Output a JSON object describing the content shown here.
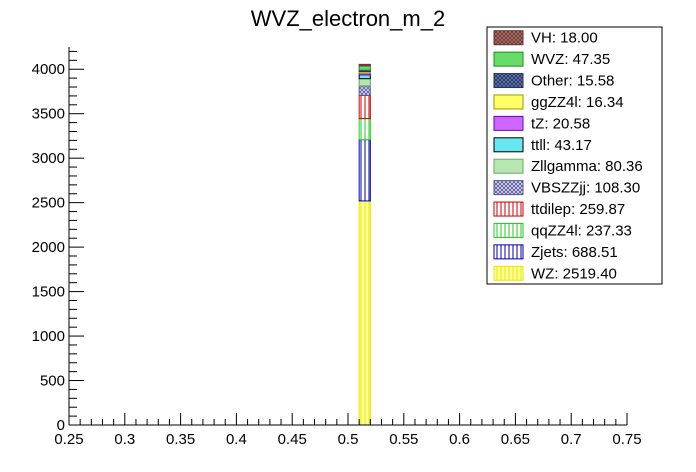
{
  "chart_data": {
    "type": "bar",
    "title": "WVZ_electron_m_2",
    "xlabel": "",
    "ylabel": "",
    "xlim": [
      0.25,
      0.75
    ],
    "ylim": [
      0,
      4250
    ],
    "x_ticks": [
      "0.25",
      "0.3",
      "0.35",
      "0.4",
      "0.45",
      "0.5",
      "0.55",
      "0.6",
      "0.65",
      "0.7",
      "0.75"
    ],
    "y_ticks": [
      "0",
      "500",
      "1000",
      "1500",
      "2000",
      "2500",
      "3000",
      "3500",
      "4000"
    ],
    "stacked": true,
    "bin": [
      0.51,
      0.52
    ],
    "legend_position": "top-right",
    "series": [
      {
        "name": "WZ",
        "value": 2519.4,
        "legend": "WZ: 2519.40",
        "color": "#e8e800",
        "fill": "#ffff99",
        "pattern": "vlines"
      },
      {
        "name": "Zjets",
        "value": 688.51,
        "legend": "Zjets: 688.51",
        "color": "#0000aa",
        "fill": "#ffffff",
        "pattern": "vlines"
      },
      {
        "name": "qqZZ4l",
        "value": 237.33,
        "legend": "qqZZ4l: 237.33",
        "color": "#22cc22",
        "fill": "#ffffff",
        "pattern": "vlines"
      },
      {
        "name": "ttdilep",
        "value": 259.87,
        "legend": "ttdilep: 259.87",
        "color": "#cc0000",
        "fill": "#ffffff",
        "pattern": "vlines"
      },
      {
        "name": "VBSZZjj",
        "value": 108.3,
        "legend": "VBSZZjj: 108.30",
        "color": "#555599",
        "fill": "#dcdcf0",
        "pattern": "cross"
      },
      {
        "name": "Zllgamma",
        "value": 80.36,
        "legend": "Zllgamma: 80.36",
        "color": "#66aa66",
        "fill": "#b8e6b0",
        "pattern": "solid"
      },
      {
        "name": "ttll",
        "value": 43.17,
        "legend": "ttll: 43.17",
        "color": "#000000",
        "fill": "#66e8f0",
        "pattern": "solid"
      },
      {
        "name": "tZ",
        "value": 20.58,
        "legend": "tZ: 20.58",
        "color": "#6600cc",
        "fill": "#cc66ff",
        "pattern": "solid"
      },
      {
        "name": "ggZZ4l",
        "value": 16.34,
        "legend": "ggZZ4l: 16.34",
        "color": "#999900",
        "fill": "#ffff66",
        "pattern": "solid"
      },
      {
        "name": "Other",
        "value": 15.58,
        "legend": "Other: 15.58",
        "color": "#223366",
        "fill": "#6677aa",
        "pattern": "cross"
      },
      {
        "name": "WVZ",
        "value": 47.35,
        "legend": "WVZ: 47.35",
        "color": "#228822",
        "fill": "#66dd66",
        "pattern": "solid"
      },
      {
        "name": "VH",
        "value": 18.0,
        "legend": "VH: 18.00",
        "color": "#663333",
        "fill": "#b07766",
        "pattern": "cross"
      }
    ],
    "legend_order": [
      "VH",
      "WVZ",
      "Other",
      "ggZZ4l",
      "tZ",
      "ttll",
      "Zllgamma",
      "VBSZZjj",
      "ttdilep",
      "qqZZ4l",
      "Zjets",
      "WZ"
    ]
  }
}
